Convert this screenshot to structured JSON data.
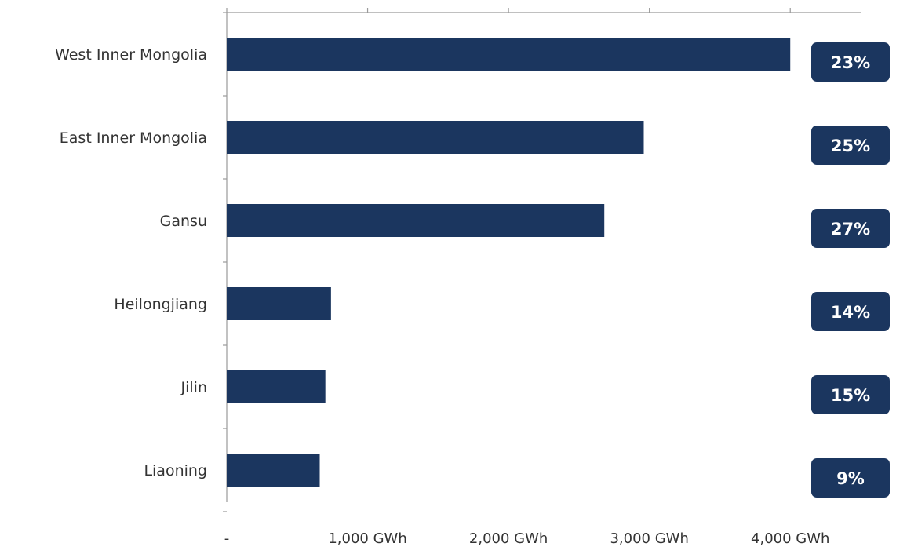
{
  "chart_data": {
    "type": "bar",
    "orientation": "horizontal",
    "categories": [
      "West Inner Mongolia",
      "East Inner Mongolia",
      "Gansu",
      "Heilongjiang",
      "Jilin",
      "Liaoning"
    ],
    "values": [
      4000,
      2960,
      2680,
      740,
      700,
      660
    ],
    "value_unit": "GWh",
    "xlim": [
      0,
      4500
    ],
    "x_ticks": [
      0,
      1000,
      2000,
      3000,
      4000
    ],
    "x_tick_labels": [
      "-",
      "1,000 GWh",
      "2,000 GWh",
      "3,000 GWh",
      "4,000 GWh"
    ],
    "badges": [
      "23%",
      "25%",
      "27%",
      "14%",
      "15%",
      "9%"
    ],
    "grid": false,
    "legend": "none",
    "title": "",
    "xlabel": "",
    "ylabel": "",
    "colors": {
      "bar": "#1b365f",
      "badge": "#1b365f",
      "badge_text": "#ffffff",
      "axis": "#9a9a9a",
      "label": "#333333"
    }
  }
}
